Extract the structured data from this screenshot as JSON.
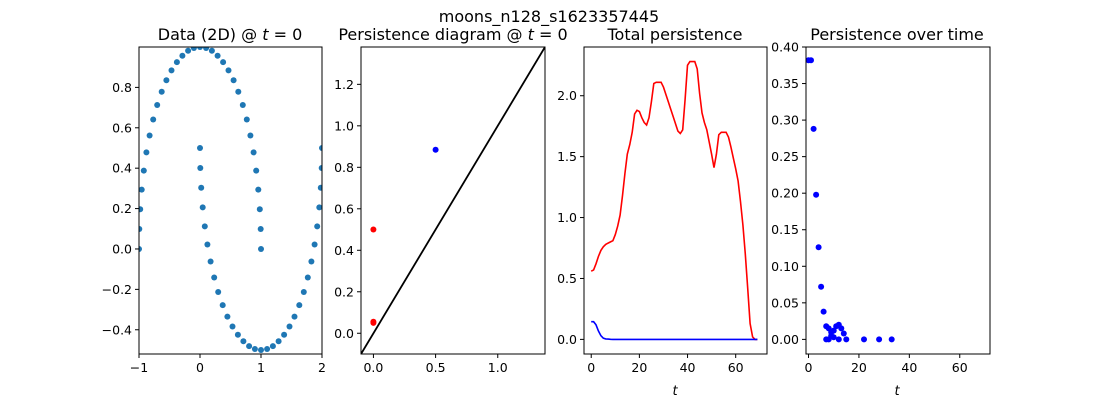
{
  "figure": {
    "suptitle": "moons_n128_s1623357445"
  },
  "chart_data": [
    {
      "id": "data2d",
      "type": "scatter",
      "title": "Data (2D) @ t = 0",
      "title_pre": "Data (2D) @ ",
      "xlabel": "",
      "ylabel": "",
      "xlim": [
        -1,
        2
      ],
      "ylim": [
        -0.52,
        1.0
      ],
      "xticks": [
        -1,
        0,
        1,
        2
      ],
      "yticks": [
        -0.4,
        -0.2,
        0.0,
        0.2,
        0.4,
        0.6,
        0.8
      ],
      "tick_labels_x": [
        "−1",
        "0",
        "1",
        "2"
      ],
      "tick_labels_y": [
        "−0.4",
        "−0.2",
        "0.0",
        "0.2",
        "0.4",
        "0.6",
        "0.8"
      ],
      "series": [
        {
          "color": "#1f77b4",
          "marker_size": 3,
          "points": [
            [
              -1.0,
              0.0
            ],
            [
              -0.995,
              0.099
            ],
            [
              -0.98,
              0.197
            ],
            [
              -0.955,
              0.294
            ],
            [
              -0.921,
              0.388
            ],
            [
              -0.878,
              0.478
            ],
            [
              -0.827,
              0.562
            ],
            [
              -0.767,
              0.641
            ],
            [
              -0.701,
              0.713
            ],
            [
              -0.628,
              0.778
            ],
            [
              -0.55,
              0.835
            ],
            [
              -0.467,
              0.884
            ],
            [
              -0.379,
              0.925
            ],
            [
              -0.288,
              0.957
            ],
            [
              -0.195,
              0.981
            ],
            [
              -0.1,
              0.995
            ],
            [
              0.0,
              1.0
            ],
            [
              0.1,
              0.995
            ],
            [
              0.195,
              0.981
            ],
            [
              0.288,
              0.957
            ],
            [
              0.379,
              0.925
            ],
            [
              0.467,
              0.884
            ],
            [
              0.55,
              0.835
            ],
            [
              0.628,
              0.778
            ],
            [
              0.701,
              0.713
            ],
            [
              0.767,
              0.641
            ],
            [
              0.827,
              0.562
            ],
            [
              0.878,
              0.478
            ],
            [
              0.921,
              0.388
            ],
            [
              0.955,
              0.294
            ],
            [
              0.98,
              0.197
            ],
            [
              0.995,
              0.099
            ],
            [
              1.0,
              0.0
            ],
            [
              0.0,
              0.5
            ],
            [
              0.005,
              0.401
            ],
            [
              0.02,
              0.303
            ],
            [
              0.045,
              0.206
            ],
            [
              0.079,
              0.112
            ],
            [
              0.122,
              0.022
            ],
            [
              0.173,
              -0.062
            ],
            [
              0.233,
              -0.141
            ],
            [
              0.299,
              -0.213
            ],
            [
              0.372,
              -0.278
            ],
            [
              0.45,
              -0.335
            ],
            [
              0.533,
              -0.384
            ],
            [
              0.621,
              -0.425
            ],
            [
              0.712,
              -0.457
            ],
            [
              0.805,
              -0.481
            ],
            [
              0.9,
              -0.495
            ],
            [
              1.0,
              -0.5
            ],
            [
              1.1,
              -0.495
            ],
            [
              1.195,
              -0.481
            ],
            [
              1.288,
              -0.457
            ],
            [
              1.379,
              -0.425
            ],
            [
              1.467,
              -0.384
            ],
            [
              1.55,
              -0.335
            ],
            [
              1.628,
              -0.278
            ],
            [
              1.701,
              -0.213
            ],
            [
              1.767,
              -0.141
            ],
            [
              1.827,
              -0.062
            ],
            [
              1.878,
              0.022
            ],
            [
              1.921,
              0.112
            ],
            [
              1.955,
              0.206
            ],
            [
              1.98,
              0.303
            ],
            [
              1.995,
              0.401
            ],
            [
              2.0,
              0.5
            ]
          ]
        }
      ]
    },
    {
      "id": "pd",
      "type": "scatter",
      "title": "Persistence diagram @ t = 0",
      "title_pre": "Persistence diagram @ ",
      "xlabel": "",
      "ylabel": "",
      "xlim": [
        -0.1,
        1.38
      ],
      "ylim": [
        -0.1,
        1.38
      ],
      "xticks": [
        0.0,
        0.5,
        1.0
      ],
      "yticks": [
        0.0,
        0.2,
        0.4,
        0.6,
        0.8,
        1.0,
        1.2
      ],
      "tick_labels_x": [
        "0.0",
        "0.5",
        "1.0"
      ],
      "tick_labels_y": [
        "0.0",
        "0.2",
        "0.4",
        "0.6",
        "0.8",
        "1.0",
        "1.2"
      ],
      "diagonal": {
        "color": "#000000"
      },
      "series": [
        {
          "color": "#ff0000",
          "points": [
            [
              0.0,
              0.5
            ],
            [
              0.0,
              0.05
            ],
            [
              0.0,
              0.055
            ]
          ]
        },
        {
          "color": "#0000ff",
          "points": [
            [
              0.5,
              0.885
            ]
          ]
        }
      ]
    },
    {
      "id": "total",
      "type": "line",
      "title": "Total persistence",
      "xlabel": "t",
      "ylabel": "",
      "xlim": [
        -3,
        73
      ],
      "ylim": [
        -0.12,
        2.4
      ],
      "xticks": [
        0,
        20,
        40,
        60
      ],
      "yticks": [
        0.0,
        0.5,
        1.0,
        1.5,
        2.0
      ],
      "tick_labels_x": [
        "0",
        "20",
        "40",
        "60"
      ],
      "tick_labels_y": [
        "0.0",
        "0.5",
        "1.0",
        "1.5",
        "2.0"
      ],
      "series": [
        {
          "color": "#ff0000",
          "x": [
            0,
            1,
            2,
            3,
            4,
            5,
            6,
            7,
            8,
            9,
            10,
            11,
            12,
            13,
            14,
            15,
            16,
            17,
            18,
            19,
            20,
            21,
            22,
            23,
            24,
            25,
            26,
            27,
            28,
            29,
            30,
            31,
            32,
            33,
            34,
            35,
            36,
            37,
            38,
            39,
            40,
            41,
            42,
            43,
            44,
            45,
            46,
            47,
            48,
            49,
            50,
            51,
            52,
            53,
            54,
            55,
            56,
            57,
            58,
            59,
            60,
            61,
            62,
            63,
            64,
            65,
            66,
            67,
            68,
            69
          ],
          "y": [
            0.56,
            0.57,
            0.62,
            0.68,
            0.73,
            0.76,
            0.78,
            0.79,
            0.8,
            0.81,
            0.86,
            0.93,
            1.02,
            1.18,
            1.36,
            1.52,
            1.6,
            1.7,
            1.85,
            1.88,
            1.87,
            1.82,
            1.78,
            1.76,
            1.82,
            1.95,
            2.1,
            2.11,
            2.11,
            2.11,
            2.07,
            2.01,
            1.95,
            1.89,
            1.83,
            1.77,
            1.71,
            1.69,
            1.72,
            1.97,
            2.25,
            2.28,
            2.28,
            2.28,
            2.22,
            2.02,
            1.86,
            1.78,
            1.72,
            1.62,
            1.52,
            1.41,
            1.52,
            1.68,
            1.7,
            1.7,
            1.7,
            1.66,
            1.58,
            1.49,
            1.4,
            1.3,
            1.13,
            0.94,
            0.7,
            0.42,
            0.13,
            0.02,
            0.0,
            0.0
          ]
        },
        {
          "color": "#0000ff",
          "x": [
            0,
            1,
            2,
            3,
            4,
            5,
            6,
            7,
            8,
            9,
            10,
            20,
            30,
            40,
            50,
            60,
            66,
            69
          ],
          "y": [
            0.145,
            0.145,
            0.12,
            0.07,
            0.03,
            0.01,
            0.004,
            0.002,
            0.001,
            0.0,
            0.0,
            0.0,
            0.0,
            0.0,
            0.0,
            0.0,
            0.0,
            0.0
          ]
        }
      ]
    },
    {
      "id": "overtime",
      "type": "scatter",
      "title": "Persistence over time",
      "xlabel": "t",
      "ylabel": "",
      "xlim": [
        -1,
        72
      ],
      "ylim": [
        -0.02,
        0.4
      ],
      "xticks": [
        0,
        20,
        40,
        60
      ],
      "yticks": [
        0.0,
        0.05,
        0.1,
        0.15,
        0.2,
        0.25,
        0.3,
        0.35,
        0.4
      ],
      "tick_labels_x": [
        "0",
        "20",
        "40",
        "60"
      ],
      "tick_labels_y": [
        "0.00",
        "0.05",
        "0.10",
        "0.15",
        "0.20",
        "0.25",
        "0.30",
        "0.35",
        "0.40"
      ],
      "series": [
        {
          "color": "#0000ff",
          "points": [
            [
              0,
              0.382
            ],
            [
              1,
              0.382
            ],
            [
              2,
              0.288
            ],
            [
              3,
              0.198
            ],
            [
              4,
              0.126
            ],
            [
              5,
              0.072
            ],
            [
              6,
              0.038
            ],
            [
              7,
              0.018
            ],
            [
              7,
              0.0
            ],
            [
              8,
              0.015
            ],
            [
              8,
              0.0
            ],
            [
              9,
              0.01
            ],
            [
              9,
              0.005
            ],
            [
              10,
              0.012
            ],
            [
              10,
              0.003
            ],
            [
              11,
              0.018
            ],
            [
              12,
              0.02
            ],
            [
              12,
              0.0
            ],
            [
              13,
              0.015
            ],
            [
              14,
              0.008
            ],
            [
              15,
              0.0
            ],
            [
              22,
              0.0
            ],
            [
              28,
              0.0
            ],
            [
              33,
              0.0
            ]
          ]
        }
      ]
    }
  ]
}
